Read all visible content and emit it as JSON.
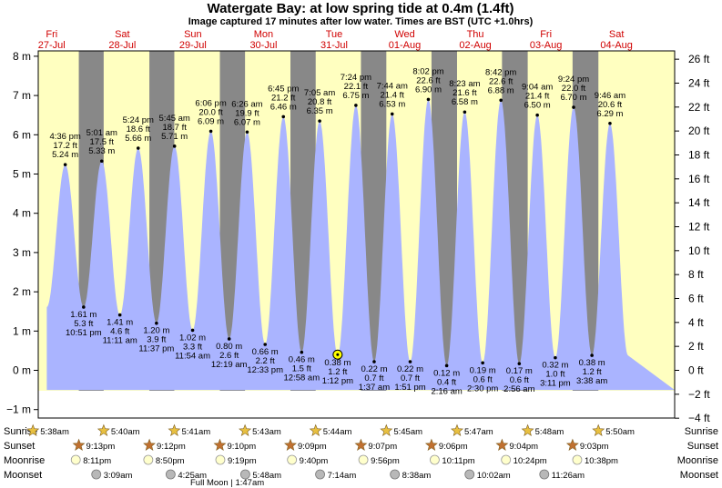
{
  "title": "Watergate Bay: at low  spring tide at 0.4m (1.4ft)",
  "subtitle": "Image captured 17 minutes after low water. Times are BST (UTC +1.0hrs)",
  "days": [
    {
      "name": "Fri",
      "date": "27-Jul"
    },
    {
      "name": "Sat",
      "date": "28-Jul"
    },
    {
      "name": "Sun",
      "date": "29-Jul"
    },
    {
      "name": "Mon",
      "date": "30-Jul"
    },
    {
      "name": "Tue",
      "date": "31-Jul"
    },
    {
      "name": "Wed",
      "date": "01-Aug"
    },
    {
      "name": "Thu",
      "date": "02-Aug"
    },
    {
      "name": "Fri",
      "date": "03-Aug"
    },
    {
      "name": "Sat",
      "date": "04-Aug"
    }
  ],
  "row_labels": {
    "sunrise": "Sunrise",
    "sunset": "Sunset",
    "moonrise": "Moonrise",
    "moonset": "Moonset"
  },
  "moon_phase": "Full Moon | 1:47am",
  "colors": {
    "day": "#ffffc0",
    "night": "#888888",
    "water": "#aab4ff",
    "marker": "#ffff00",
    "sunrise_star": "#e8c040",
    "sunset_star": "#c07030",
    "moon": "#ffffcc",
    "moonset": "#b8b8b8"
  },
  "chart_data": {
    "type": "area",
    "title": "Watergate Bay: at low  spring tide at 0.4m (1.4ft)",
    "ylabel_left": "m",
    "ylabel_right": "ft",
    "ylim_m": [
      -1.2,
      8.4
    ],
    "yticks_m": [
      "8 m",
      "7 m",
      "6 m",
      "5 m",
      "4 m",
      "3 m",
      "2 m",
      "1 m",
      "0 m",
      "−1 m"
    ],
    "yticks_ft": [
      "26 ft",
      "24 ft",
      "22 ft",
      "20 ft",
      "18 ft",
      "16 ft",
      "14 ft",
      "12 ft",
      "10 ft",
      "8 ft",
      "6 ft",
      "4 ft",
      "2 ft",
      "0 ft",
      "−2 ft",
      "−4 ft"
    ],
    "current": {
      "value_m": 0.4
    },
    "tides": [
      {
        "type": "high",
        "day": 0,
        "time": "4:36 pm",
        "ft": "17.2 ft",
        "m": "5.24 m",
        "value": 5.24
      },
      {
        "type": "low",
        "day": 0,
        "time": "10:51 pm",
        "ft": "5.3 ft",
        "m": "1.61 m",
        "value": 1.61
      },
      {
        "type": "high",
        "day": 1,
        "time": "5:01 am",
        "ft": "17.5 ft",
        "m": "5.33 m",
        "value": 5.33
      },
      {
        "type": "low",
        "day": 1,
        "time": "11:11 am",
        "ft": "4.6 ft",
        "m": "1.41 m",
        "value": 1.41
      },
      {
        "type": "high",
        "day": 1,
        "time": "5:24 pm",
        "ft": "18.6 ft",
        "m": "5.66 m",
        "value": 5.66
      },
      {
        "type": "low",
        "day": 1,
        "time": "11:37 pm",
        "ft": "3.9 ft",
        "m": "1.20 m",
        "value": 1.2
      },
      {
        "type": "high",
        "day": 2,
        "time": "5:45 am",
        "ft": "18.7 ft",
        "m": "5.71 m",
        "value": 5.71
      },
      {
        "type": "low",
        "day": 2,
        "time": "11:54 am",
        "ft": "3.3 ft",
        "m": "1.02 m",
        "value": 1.02
      },
      {
        "type": "high",
        "day": 2,
        "time": "6:06 pm",
        "ft": "20.0 ft",
        "m": "6.09 m",
        "value": 6.09
      },
      {
        "type": "low",
        "day": 3,
        "time": "12:19 am",
        "ft": "2.6 ft",
        "m": "0.80 m",
        "value": 0.8
      },
      {
        "type": "high",
        "day": 3,
        "time": "6:26 am",
        "ft": "19.9 ft",
        "m": "6.07 m",
        "value": 6.07
      },
      {
        "type": "low",
        "day": 3,
        "time": "12:33 pm",
        "ft": "2.2 ft",
        "m": "0.66 m",
        "value": 0.66
      },
      {
        "type": "high",
        "day": 3,
        "time": "6:45 pm",
        "ft": "21.2 ft",
        "m": "6.46 m",
        "value": 6.46
      },
      {
        "type": "low",
        "day": 4,
        "time": "12:58 am",
        "ft": "1.5 ft",
        "m": "0.46 m",
        "value": 0.46
      },
      {
        "type": "high",
        "day": 4,
        "time": "7:05 am",
        "ft": "20.8 ft",
        "m": "6.35 m",
        "value": 6.35
      },
      {
        "type": "low",
        "day": 4,
        "time": "1:12 pm",
        "ft": "1.2 ft",
        "m": "0.38 m",
        "value": 0.38
      },
      {
        "type": "high",
        "day": 4,
        "time": "7:24 pm",
        "ft": "22.1 ft",
        "m": "6.75 m",
        "value": 6.75
      },
      {
        "type": "low",
        "day": 5,
        "time": "1:37 am",
        "ft": "0.7 ft",
        "m": "0.22 m",
        "value": 0.22
      },
      {
        "type": "high",
        "day": 5,
        "time": "7:44 am",
        "ft": "21.4 ft",
        "m": "6.53 m",
        "value": 6.53
      },
      {
        "type": "low",
        "day": 5,
        "time": "1:51 pm",
        "ft": "0.7 ft",
        "m": "0.22 m",
        "value": 0.22
      },
      {
        "type": "high",
        "day": 5,
        "time": "8:02 pm",
        "ft": "22.6 ft",
        "m": "6.90 m",
        "value": 6.9
      },
      {
        "type": "low",
        "day": 6,
        "time": "2:16 am",
        "ft": "0.4 ft",
        "m": "0.12 m",
        "value": 0.12
      },
      {
        "type": "high",
        "day": 6,
        "time": "8:23 am",
        "ft": "21.6 ft",
        "m": "6.58 m",
        "value": 6.58
      },
      {
        "type": "low",
        "day": 6,
        "time": "2:30 pm",
        "ft": "0.6 ft",
        "m": "0.19 m",
        "value": 0.19
      },
      {
        "type": "high",
        "day": 6,
        "time": "8:42 pm",
        "ft": "22.6 ft",
        "m": "6.88 m",
        "value": 6.88
      },
      {
        "type": "low",
        "day": 7,
        "time": "2:56 am",
        "ft": "0.6 ft",
        "m": "0.17 m",
        "value": 0.17
      },
      {
        "type": "high",
        "day": 7,
        "time": "9:04 am",
        "ft": "21.4 ft",
        "m": "6.50 m",
        "value": 6.5
      },
      {
        "type": "low",
        "day": 7,
        "time": "3:11 pm",
        "ft": "1.0 ft",
        "m": "0.32 m",
        "value": 0.32
      },
      {
        "type": "high",
        "day": 7,
        "time": "9:24 pm",
        "ft": "22.0 ft",
        "m": "6.70 m",
        "value": 6.7
      },
      {
        "type": "low",
        "day": 8,
        "time": "3:38 am",
        "ft": "1.2 ft",
        "m": "0.38 m",
        "value": 0.38
      },
      {
        "type": "high",
        "day": 8,
        "time": "9:46 am",
        "ft": "20.6 ft",
        "m": "6.29 m",
        "value": 6.29
      }
    ],
    "sun_moon": {
      "sunrise": [
        "5:38am",
        "5:40am",
        "5:41am",
        "5:43am",
        "5:44am",
        "5:45am",
        "5:47am",
        "5:48am",
        "5:50am"
      ],
      "sunset": [
        "9:13pm",
        "9:12pm",
        "9:10pm",
        "9:09pm",
        "9:07pm",
        "9:06pm",
        "9:04pm",
        "9:03pm"
      ],
      "moonrise": [
        "8:11pm",
        "8:50pm",
        "9:19pm",
        "9:40pm",
        "9:56pm",
        "10:11pm",
        "10:24pm",
        "10:38pm"
      ],
      "moonset": [
        "3:09am",
        "4:25am",
        "5:48am",
        "7:14am",
        "8:38am",
        "10:02am",
        "11:26am"
      ]
    }
  }
}
